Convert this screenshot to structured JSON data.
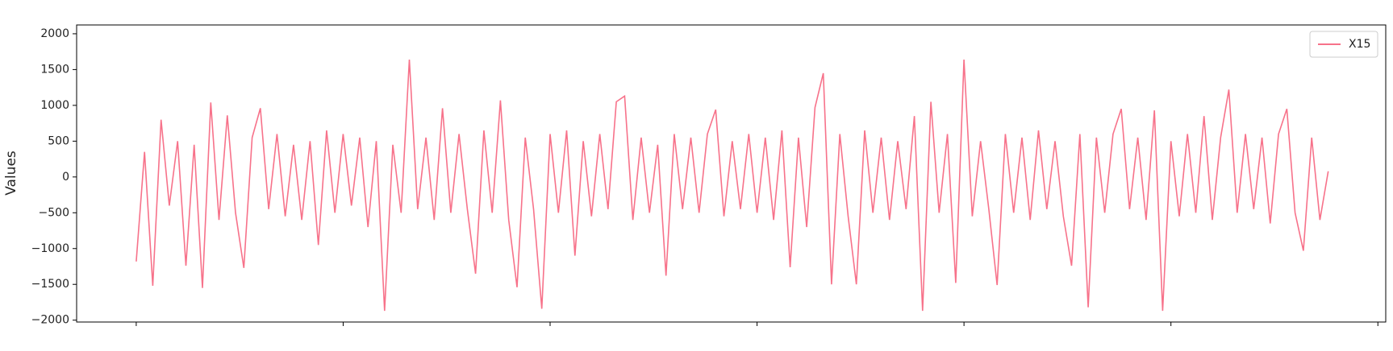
{
  "chart_data": {
    "type": "line",
    "y_label": "Values",
    "x": [
      0,
      20,
      40,
      60,
      80,
      100,
      120,
      140,
      160,
      180,
      200,
      220,
      240,
      260,
      280,
      300,
      320,
      340,
      360,
      380,
      400,
      420,
      440,
      460,
      480,
      500,
      520,
      540,
      560,
      580,
      600,
      620,
      640,
      660,
      680,
      700,
      720,
      740,
      760,
      780,
      800,
      820,
      840,
      860,
      880,
      900,
      920,
      940,
      960,
      980,
      1000,
      1020,
      1040,
      1060,
      1080,
      1100,
      1120,
      1140,
      1160,
      1180,
      1200,
      1220,
      1240,
      1260,
      1280,
      1300,
      1320,
      1340,
      1360,
      1380,
      1400,
      1420,
      1440,
      1460,
      1480,
      1500,
      1520,
      1540,
      1560,
      1580,
      1600,
      1620,
      1640,
      1660,
      1680,
      1700,
      1720,
      1740,
      1760,
      1780,
      1800,
      1820,
      1840,
      1860,
      1880,
      1900,
      1920,
      1940,
      1960,
      1980,
      2000,
      2020,
      2040,
      2060,
      2080,
      2100,
      2120,
      2140,
      2160,
      2180,
      2200,
      2220,
      2240,
      2260,
      2280,
      2300,
      2320,
      2340,
      2360,
      2380,
      2400,
      2420,
      2440,
      2460,
      2480,
      2500,
      2520,
      2540,
      2560,
      2580,
      2600,
      2620,
      2640,
      2660,
      2680,
      2700,
      2720,
      2740,
      2760,
      2780,
      2800,
      2820,
      2840,
      2860,
      2880
    ],
    "series": [
      {
        "name": "X15",
        "color": "#f7728a",
        "values": [
          -1180,
          350,
          -1520,
          800,
          -400,
          500,
          -1240,
          450,
          -1550,
          1040,
          -600,
          860,
          -500,
          -1270,
          550,
          960,
          -450,
          600,
          -550,
          450,
          -600,
          500,
          -950,
          650,
          -500,
          600,
          -400,
          550,
          -700,
          500,
          -1870,
          450,
          -500,
          1640,
          -450,
          550,
          -600,
          960,
          -500,
          600,
          -450,
          -1350,
          650,
          -500,
          1070,
          -600,
          -1540,
          550,
          -450,
          -1840,
          600,
          -500,
          650,
          -1100,
          500,
          -550,
          600,
          -450,
          1050,
          1130,
          -600,
          550,
          -500,
          450,
          -1380,
          600,
          -450,
          550,
          -500,
          600,
          940,
          -550,
          500,
          -450,
          600,
          -500,
          550,
          -600,
          650,
          -1260,
          550,
          -700,
          970,
          1450,
          -1500,
          600,
          -550,
          -1500,
          650,
          -500,
          550,
          -600,
          500,
          -450,
          850,
          -1870,
          1050,
          -500,
          600,
          -1480,
          1640,
          -550,
          500,
          -450,
          -1510,
          600,
          -500,
          550,
          -600,
          650,
          -450,
          500,
          -550,
          -1240,
          600,
          -1820,
          550,
          -500,
          600,
          950,
          -450,
          550,
          -600,
          930,
          -1870,
          500,
          -550,
          600,
          -500,
          850,
          -600,
          550,
          1220,
          -500,
          600,
          -450,
          550,
          -650,
          600,
          950,
          -500,
          -1030,
          550,
          -600,
          80
        ]
      }
    ],
    "xlim": [
      -144,
      3019
    ],
    "xticks": [
      0,
      500,
      1000,
      1500,
      2000,
      2500,
      3000
    ],
    "ylim": [
      -2026,
      2123
    ],
    "yticks": [
      {
        "value": -2000,
        "label": "−2000"
      },
      {
        "value": -1500,
        "label": "−1500"
      },
      {
        "value": -1000,
        "label": "−1000"
      },
      {
        "value": -500,
        "label": "−500"
      },
      0,
      500,
      1000,
      1500,
      2000
    ],
    "legend": "upper right"
  }
}
